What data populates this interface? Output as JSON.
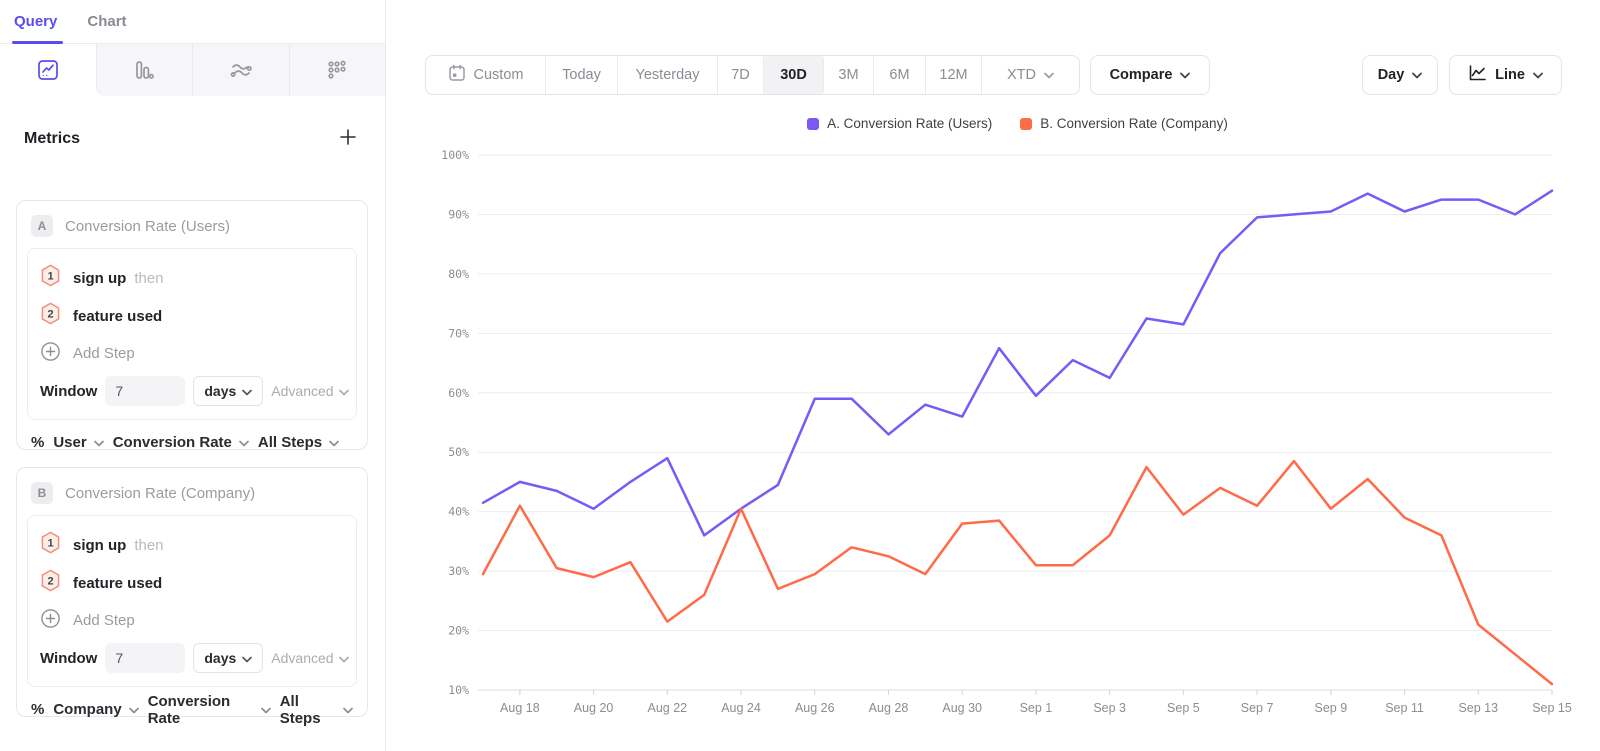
{
  "sidebar": {
    "tabs": [
      {
        "label": "Query"
      },
      {
        "label": "Chart"
      }
    ],
    "view_tabs": [
      {
        "icon": "trends-line-icon",
        "active": true
      },
      {
        "icon": "bar-chart-icon",
        "active": false
      },
      {
        "icon": "flow-icon",
        "active": false
      },
      {
        "icon": "dots-grid-icon",
        "active": false
      }
    ],
    "metrics": {
      "title": "Metrics",
      "add_icon": "plus-icon",
      "cards": [
        {
          "badge": "A",
          "title": "Conversion Rate (Users)",
          "steps": [
            {
              "num": "1",
              "name": "sign up",
              "suffix": "then"
            },
            {
              "num": "2",
              "name": "feature used",
              "suffix": ""
            }
          ],
          "add_step_label": "Add Step",
          "window_label": "Window",
          "window_value": "7",
          "window_unit": "days",
          "advanced_label": "Advanced",
          "measure": {
            "prefix": "%",
            "entity": "User",
            "metric": "Conversion Rate",
            "scope": "All Steps"
          }
        },
        {
          "badge": "B",
          "title": "Conversion Rate (Company)",
          "steps": [
            {
              "num": "1",
              "name": "sign up",
              "suffix": "then"
            },
            {
              "num": "2",
              "name": "feature used",
              "suffix": ""
            }
          ],
          "add_step_label": "Add Step",
          "window_label": "Window",
          "window_value": "7",
          "window_unit": "days",
          "advanced_label": "Advanced",
          "measure": {
            "prefix": "%",
            "entity": "Company",
            "metric": "Conversion Rate",
            "scope": "All Steps"
          }
        }
      ]
    }
  },
  "toolbar": {
    "date_ranges": [
      "Custom",
      "Today",
      "Yesterday",
      "7D",
      "30D",
      "3M",
      "6M",
      "12M",
      "XTD"
    ],
    "active_range": "30D",
    "compare_label": "Compare",
    "granularity_label": "Day",
    "chart_type_label": "Line"
  },
  "chart_data": {
    "type": "line",
    "title": "",
    "xlabel": "",
    "ylabel": "",
    "ylim": [
      10,
      100
    ],
    "grid": true,
    "legend_position": "top-center",
    "y_ticks": [
      "100%",
      "90%",
      "80%",
      "70%",
      "60%",
      "50%",
      "40%",
      "30%",
      "20%",
      "10%"
    ],
    "y_tick_values": [
      100,
      90,
      80,
      70,
      60,
      50,
      40,
      30,
      20,
      10
    ],
    "x": [
      "Aug 17",
      "Aug 18",
      "Aug 19",
      "Aug 20",
      "Aug 21",
      "Aug 22",
      "Aug 23",
      "Aug 24",
      "Aug 25",
      "Aug 26",
      "Aug 27",
      "Aug 28",
      "Aug 29",
      "Aug 30",
      "Aug 31",
      "Sep 1",
      "Sep 2",
      "Sep 3",
      "Sep 4",
      "Sep 5",
      "Sep 6",
      "Sep 7",
      "Sep 8",
      "Sep 9",
      "Sep 10",
      "Sep 11",
      "Sep 12",
      "Sep 13",
      "Sep 14",
      "Sep 15"
    ],
    "x_tick_indices": [
      1,
      3,
      5,
      7,
      9,
      11,
      13,
      15,
      17,
      19,
      21,
      23,
      25,
      27,
      29
    ],
    "series": [
      {
        "name": "A. Conversion Rate (Users)",
        "color": "#7a59f6",
        "values": [
          41.5,
          45,
          43.5,
          40.5,
          45,
          49,
          36,
          40.5,
          44.5,
          59,
          59,
          53,
          58,
          56,
          67.5,
          59.5,
          65.5,
          62.5,
          72.5,
          71.5,
          83.5,
          89.5,
          90,
          90.5,
          93.5,
          90.5,
          92.5,
          92.5,
          90,
          94
        ]
      },
      {
        "name": "B. Conversion Rate (Company)",
        "color": "#ff6b48",
        "values": [
          29.5,
          41,
          30.5,
          29,
          31.5,
          21.5,
          26,
          40.5,
          27,
          29.5,
          34,
          32.5,
          29.5,
          38,
          38.5,
          31,
          31,
          36,
          47.5,
          39.5,
          44,
          41,
          48.5,
          40.5,
          45.5,
          39,
          36,
          21,
          16,
          11
        ]
      }
    ]
  }
}
